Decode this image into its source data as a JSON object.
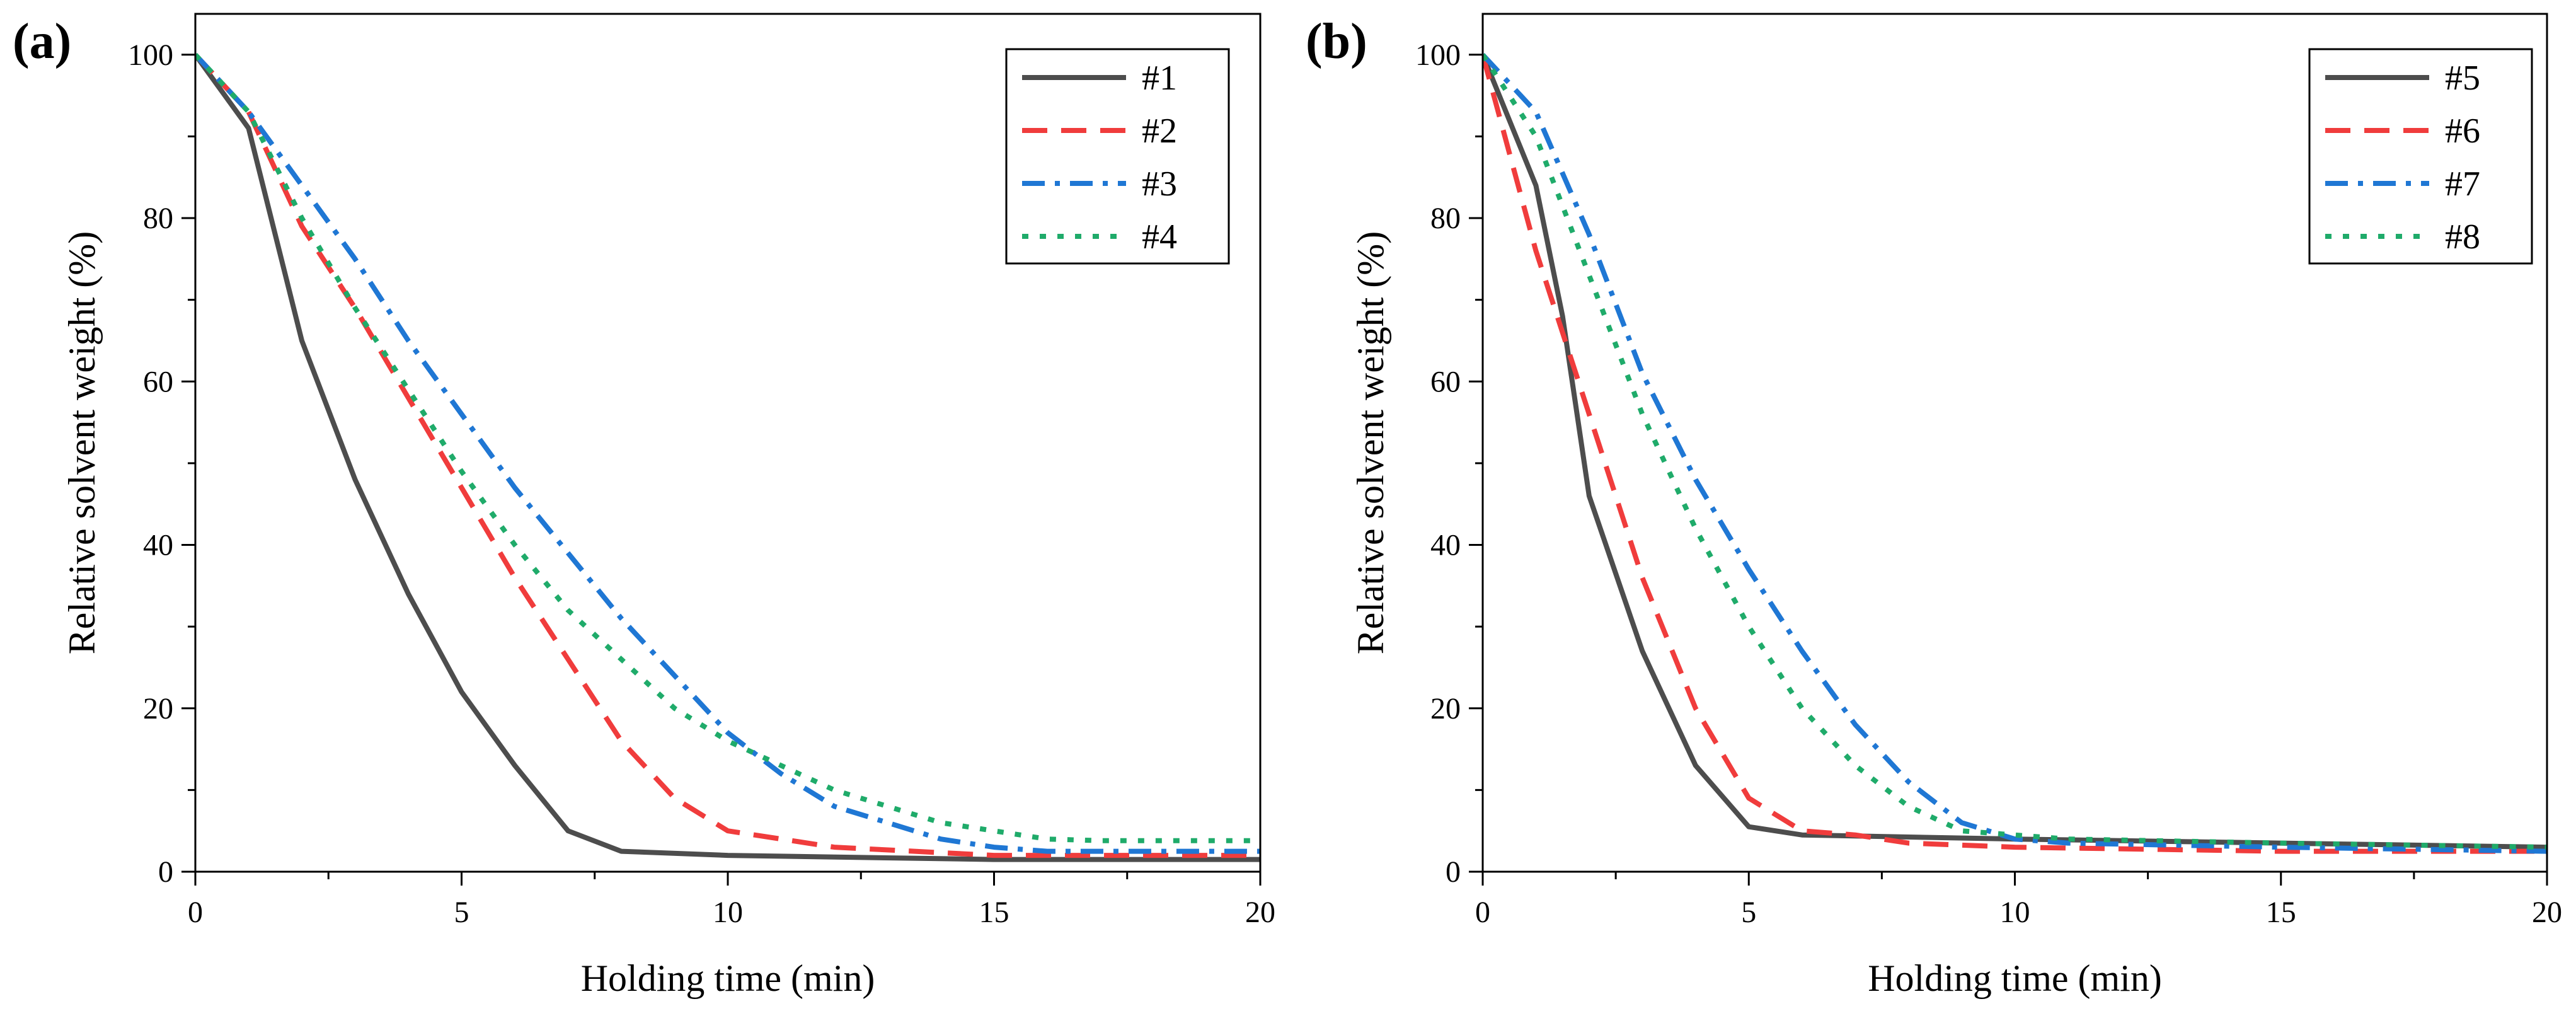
{
  "chart_data": [
    {
      "type": "line",
      "panel_label": "(a)",
      "title": "",
      "xlabel": "Holding time (min)",
      "ylabel": "Relative solvent weight (%)",
      "xlim": [
        0,
        20
      ],
      "ylim": [
        0,
        105
      ],
      "xticks": [
        0,
        5,
        10,
        15,
        20
      ],
      "yticks": [
        0,
        20,
        40,
        60,
        80,
        100
      ],
      "legend_position": "top-right",
      "series": [
        {
          "name": "#1",
          "color": "#4d4d4d",
          "style": "solid",
          "x": [
            0,
            1,
            2,
            3,
            4,
            5,
            6,
            7,
            8,
            10,
            15,
            20
          ],
          "y": [
            100,
            91,
            65,
            48,
            34,
            22,
            13,
            5,
            2.5,
            2,
            1.5,
            1.5
          ]
        },
        {
          "name": "#2",
          "color": "#f03c3c",
          "style": "dash",
          "x": [
            0,
            1,
            2,
            3,
            4,
            5,
            6,
            7,
            8,
            9,
            10,
            12,
            15,
            20
          ],
          "y": [
            100,
            93,
            79,
            69,
            58,
            47,
            36,
            26,
            16,
            9,
            5,
            3,
            2,
            2
          ]
        },
        {
          "name": "#3",
          "color": "#1f77d4",
          "style": "dashdot",
          "x": [
            0,
            1,
            2,
            3,
            4,
            5,
            6,
            7,
            8,
            9,
            10,
            11,
            12,
            13,
            14,
            15,
            16,
            20
          ],
          "y": [
            100,
            93,
            84,
            75,
            65,
            56,
            47,
            39,
            31,
            24,
            17,
            12,
            8,
            6,
            4,
            3,
            2.5,
            2.5
          ]
        },
        {
          "name": "#4",
          "color": "#1fab6a",
          "style": "dot",
          "x": [
            0,
            1,
            2,
            3,
            4,
            5,
            6,
            7,
            8,
            9,
            10,
            11,
            12,
            13,
            14,
            15,
            16,
            17,
            20
          ],
          "y": [
            100,
            93,
            80,
            69,
            59,
            49,
            40,
            32,
            26,
            20,
            16,
            13,
            10,
            8,
            6,
            5,
            4,
            3.8,
            3.8
          ]
        }
      ]
    },
    {
      "type": "line",
      "panel_label": "(b)",
      "title": "",
      "xlabel": "Holding time (min)",
      "ylabel": "Relative solvent weight (%)",
      "xlim": [
        0,
        20
      ],
      "ylim": [
        0,
        105
      ],
      "xticks": [
        0,
        5,
        10,
        15,
        20
      ],
      "yticks": [
        0,
        20,
        40,
        60,
        80,
        100
      ],
      "legend_position": "top-right",
      "series": [
        {
          "name": "#5",
          "color": "#4d4d4d",
          "style": "solid",
          "x": [
            0,
            1,
            1.5,
            2,
            3,
            4,
            5,
            6,
            10,
            15,
            20
          ],
          "y": [
            100,
            84,
            68,
            46,
            27,
            13,
            5.5,
            4.5,
            4,
            3.5,
            3
          ]
        },
        {
          "name": "#6",
          "color": "#f03c3c",
          "style": "dash",
          "x": [
            0,
            0.5,
            1,
            2,
            3,
            4,
            5,
            6,
            7,
            8,
            10,
            15,
            20
          ],
          "y": [
            100,
            88,
            76,
            56,
            36,
            20,
            9,
            5,
            4.5,
            3.5,
            3,
            2.5,
            2.5
          ]
        },
        {
          "name": "#7",
          "color": "#1f77d4",
          "style": "dashdot",
          "x": [
            0,
            1,
            2,
            3,
            4,
            5,
            6,
            7,
            8,
            9,
            10,
            11,
            15,
            20
          ],
          "y": [
            100,
            93,
            78,
            61,
            48,
            37,
            27,
            18,
            11,
            6,
            4,
            3.5,
            3,
            2.5
          ]
        },
        {
          "name": "#8",
          "color": "#1fab6a",
          "style": "dot",
          "x": [
            0,
            1,
            2,
            3,
            4,
            5,
            6,
            7,
            8,
            9,
            10,
            11,
            15,
            20
          ],
          "y": [
            100,
            90,
            73,
            56,
            42,
            30,
            20,
            13,
            8,
            5,
            4.5,
            4,
            3.5,
            3
          ]
        }
      ]
    }
  ]
}
